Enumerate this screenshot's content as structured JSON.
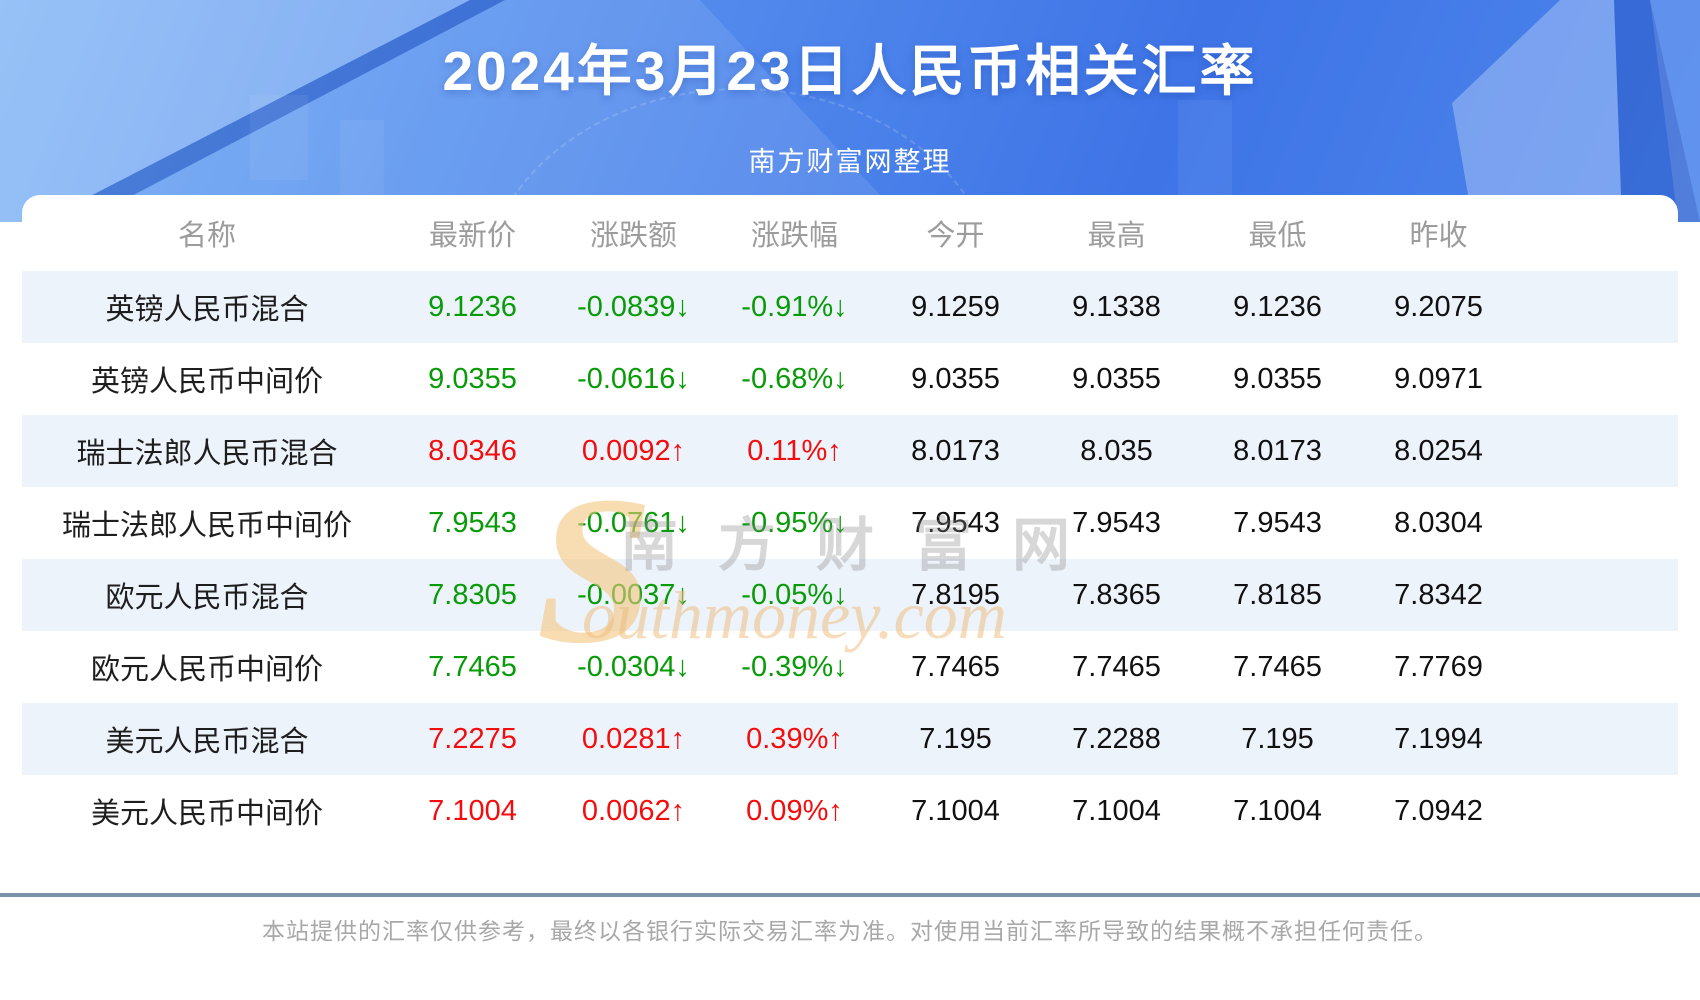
{
  "header": {
    "title": "2024年3月23日人民币相关汇率",
    "subtitle": "南方财富网整理"
  },
  "watermark": {
    "initial": "S",
    "cn": "南方财富网",
    "en": "outhmoney.com"
  },
  "chart_data": {
    "type": "table",
    "title": "2024年3月23日人民币相关汇率",
    "columns": [
      "名称",
      "最新价",
      "涨跌额",
      "涨跌幅",
      "今开",
      "最高",
      "最低",
      "昨收"
    ],
    "rows": [
      {
        "name": "英镑人民币混合",
        "latest": "9.1236",
        "change": "-0.0839↓",
        "change_pct": "-0.91%↓",
        "open": "9.1259",
        "high": "9.1338",
        "low": "9.1236",
        "prev_close": "9.2075",
        "trend": "down"
      },
      {
        "name": "英镑人民币中间价",
        "latest": "9.0355",
        "change": "-0.0616↓",
        "change_pct": "-0.68%↓",
        "open": "9.0355",
        "high": "9.0355",
        "low": "9.0355",
        "prev_close": "9.0971",
        "trend": "down"
      },
      {
        "name": "瑞士法郎人民币混合",
        "latest": "8.0346",
        "change": "0.0092↑",
        "change_pct": "0.11%↑",
        "open": "8.0173",
        "high": "8.035",
        "low": "8.0173",
        "prev_close": "8.0254",
        "trend": "up"
      },
      {
        "name": "瑞士法郎人民币中间价",
        "latest": "7.9543",
        "change": "-0.0761↓",
        "change_pct": "-0.95%↓",
        "open": "7.9543",
        "high": "7.9543",
        "low": "7.9543",
        "prev_close": "8.0304",
        "trend": "down"
      },
      {
        "name": "欧元人民币混合",
        "latest": "7.8305",
        "change": "-0.0037↓",
        "change_pct": "-0.05%↓",
        "open": "7.8195",
        "high": "7.8365",
        "low": "7.8185",
        "prev_close": "7.8342",
        "trend": "down"
      },
      {
        "name": "欧元人民币中间价",
        "latest": "7.7465",
        "change": "-0.0304↓",
        "change_pct": "-0.39%↓",
        "open": "7.7465",
        "high": "7.7465",
        "low": "7.7465",
        "prev_close": "7.7769",
        "trend": "down"
      },
      {
        "name": "美元人民币混合",
        "latest": "7.2275",
        "change": "0.0281↑",
        "change_pct": "0.39%↑",
        "open": "7.195",
        "high": "7.2288",
        "low": "7.195",
        "prev_close": "7.1994",
        "trend": "up"
      },
      {
        "name": "美元人民币中间价",
        "latest": "7.1004",
        "change": "0.0062↑",
        "change_pct": "0.09%↑",
        "open": "7.1004",
        "high": "7.1004",
        "low": "7.1004",
        "prev_close": "7.0942",
        "trend": "up"
      }
    ]
  },
  "footer": {
    "disclaimer": "本站提供的汇率仅供参考，最终以各银行实际交易汇率为准。对使用当前汇率所导致的结果概不承担任何责任。"
  },
  "colors": {
    "up": "#f40d0d",
    "down": "#089b08",
    "banner_blue": "#4a80e9",
    "stripe": "#edf3fb",
    "divider": "#7b93a9"
  }
}
